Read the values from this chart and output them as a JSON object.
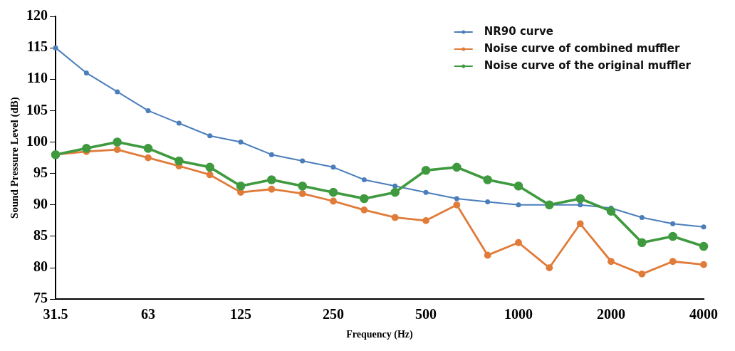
{
  "chart_data": {
    "type": "line",
    "xlabel": "Frequency (Hz)",
    "ylabel": "Sound Pressure Level (dB)",
    "categories": [
      "31.5",
      null,
      null,
      "63",
      null,
      null,
      "125",
      null,
      null,
      "250",
      null,
      null,
      "500",
      null,
      null,
      "1000",
      null,
      null,
      "2000",
      null,
      null,
      "4000"
    ],
    "ylim": [
      75,
      120
    ],
    "yticks": [
      75,
      80,
      85,
      90,
      95,
      100,
      105,
      110,
      115,
      120
    ],
    "grid": false,
    "legend": "top right",
    "marker": "circle",
    "line_style": "solid",
    "series": [
      {
        "name": "NR90 curve",
        "color": "#4a7ebb",
        "values": [
          115,
          111,
          108,
          105,
          103,
          101,
          100,
          98,
          97,
          96,
          94,
          93,
          92,
          91,
          90.5,
          90,
          90,
          90,
          89.5,
          88,
          87,
          86.5
        ]
      },
      {
        "name": "Noise curve of combined muffler",
        "color": "#e07b39",
        "values": [
          98,
          98.5,
          98.8,
          97.5,
          96.2,
          94.8,
          92,
          92.5,
          91.8,
          90.6,
          89.2,
          88,
          87.5,
          90,
          82,
          84,
          80,
          87,
          81,
          79,
          81,
          80.5
        ]
      },
      {
        "name": "Noise curve of the original muffler",
        "color": "#3f9a3f",
        "values": [
          98,
          99,
          100,
          99,
          97,
          96,
          93,
          94,
          93,
          92,
          91,
          92,
          95.5,
          96,
          94,
          93,
          90,
          91,
          89,
          84,
          85,
          83.4
        ]
      }
    ]
  }
}
